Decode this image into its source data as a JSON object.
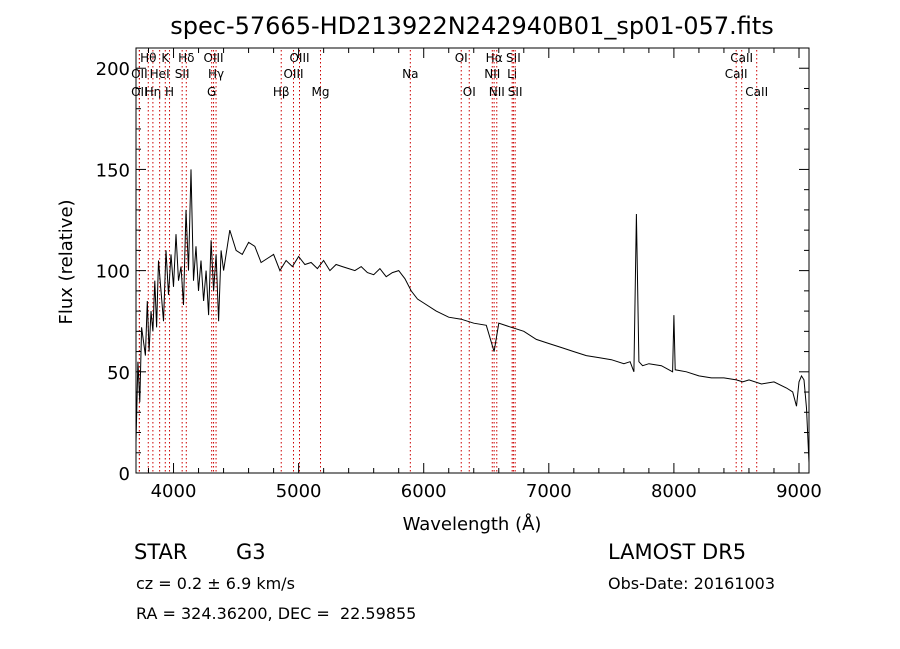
{
  "chart_data": {
    "type": "line",
    "title": "spec-57665-HD213922N242940B01_sp01-057.fits",
    "xlabel": "Wavelength (Å)",
    "ylabel": "Flux (relative)",
    "xlim": [
      3700,
      9080
    ],
    "ylim": [
      0,
      210
    ],
    "xticks": [
      4000,
      5000,
      6000,
      7000,
      8000,
      9000
    ],
    "yticks": [
      0,
      50,
      100,
      150,
      200
    ],
    "grid": false,
    "line_color": "#000000",
    "marker_color": "#cc0000",
    "series": [
      {
        "x": [
          3700,
          3715,
          3730,
          3745,
          3760,
          3775,
          3790,
          3805,
          3820,
          3835,
          3850,
          3865,
          3880,
          3900,
          3920,
          3940,
          3960,
          3980,
          4000,
          4020,
          4040,
          4060,
          4080,
          4100,
          4120,
          4140,
          4160,
          4180,
          4200,
          4220,
          4240,
          4260,
          4280,
          4300,
          4320,
          4340,
          4360,
          4380,
          4400,
          4450,
          4500,
          4550,
          4600,
          4650,
          4700,
          4750,
          4800,
          4850,
          4900,
          4950,
          5000,
          5050,
          5100,
          5150,
          5200,
          5250,
          5300,
          5350,
          5400,
          5450,
          5500,
          5550,
          5600,
          5650,
          5700,
          5750,
          5800,
          5850,
          5900,
          5950,
          6000,
          6100,
          6200,
          6300,
          6400,
          6500,
          6563,
          6600,
          6700,
          6800,
          6900,
          7000,
          7100,
          7200,
          7300,
          7400,
          7500,
          7600,
          7650,
          7680,
          7700,
          7720,
          7750,
          7800,
          7900,
          7990,
          8000,
          8010,
          8100,
          8200,
          8300,
          8400,
          8500,
          8550,
          8600,
          8700,
          8800,
          8900,
          8950,
          8980,
          9000,
          9020,
          9040,
          9060,
          9080
        ],
        "y": [
          15,
          55,
          35,
          72,
          65,
          58,
          85,
          60,
          80,
          70,
          95,
          72,
          105,
          90,
          75,
          110,
          88,
          108,
          92,
          118,
          95,
          102,
          83,
          130,
          100,
          150,
          95,
          112,
          90,
          105,
          85,
          100,
          78,
          115,
          90,
          108,
          75,
          110,
          100,
          120,
          110,
          108,
          114,
          112,
          104,
          106,
          108,
          100,
          105,
          102,
          107,
          103,
          104,
          101,
          105,
          100,
          103,
          102,
          101,
          100,
          102,
          99,
          98,
          101,
          97,
          99,
          100,
          96,
          90,
          86,
          84,
          80,
          77,
          76,
          74,
          73,
          60,
          74,
          72,
          70,
          66,
          64,
          62,
          60,
          58,
          57,
          56,
          54,
          55,
          50,
          128,
          55,
          53,
          54,
          53,
          50,
          78,
          51,
          50,
          48,
          47,
          47,
          46,
          45,
          46,
          44,
          45,
          42,
          40,
          33,
          45,
          48,
          46,
          32,
          5
        ]
      }
    ],
    "lines": [
      {
        "name": "Hθ",
        "x": 3798,
        "row": 1
      },
      {
        "name": "OII",
        "x": 3727,
        "row": 2
      },
      {
        "name": "OII",
        "x": 3727,
        "row": 3
      },
      {
        "name": "Hη",
        "x": 3835,
        "row": 3
      },
      {
        "name": "HeI",
        "x": 3889,
        "row": 2
      },
      {
        "name": "K",
        "x": 3934,
        "row": 1
      },
      {
        "name": "H",
        "x": 3968,
        "row": 3
      },
      {
        "name": "SII",
        "x": 4069,
        "row": 2
      },
      {
        "name": "Hδ",
        "x": 4102,
        "row": 1
      },
      {
        "name": "OIII",
        "x": 4320,
        "row": 1
      },
      {
        "name": "Hγ",
        "x": 4340,
        "row": 2
      },
      {
        "name": "G",
        "x": 4305,
        "row": 3
      },
      {
        "name": "OIII",
        "x": 5007,
        "row": 1
      },
      {
        "name": "OIII",
        "x": 4959,
        "row": 2
      },
      {
        "name": "Hβ",
        "x": 4861,
        "row": 3
      },
      {
        "name": "Mg",
        "x": 5175,
        "row": 3
      },
      {
        "name": "Na",
        "x": 5893,
        "row": 2
      },
      {
        "name": "OI",
        "x": 6300,
        "row": 1
      },
      {
        "name": "OI",
        "x": 6364,
        "row": 3
      },
      {
        "name": "Hα",
        "x": 6563,
        "row": 1
      },
      {
        "name": "NII",
        "x": 6548,
        "row": 2
      },
      {
        "name": "NII",
        "x": 6584,
        "row": 3
      },
      {
        "name": "SII",
        "x": 6717,
        "row": 1
      },
      {
        "name": "Li",
        "x": 6707,
        "row": 2
      },
      {
        "name": "SII",
        "x": 6731,
        "row": 3
      },
      {
        "name": "CaII",
        "x": 8542,
        "row": 1
      },
      {
        "name": "CaII",
        "x": 8498,
        "row": 2
      },
      {
        "name": "CaII",
        "x": 8662,
        "row": 3
      }
    ]
  },
  "info": {
    "object_class": "STAR",
    "subclass": "G3",
    "survey": "LAMOST DR5",
    "redshift": "cz = 0.2 ± 6.9 km/s",
    "obs_date": "Obs-Date: 20161003",
    "coords": "RA = 324.36200, DEC =  22.59855"
  }
}
